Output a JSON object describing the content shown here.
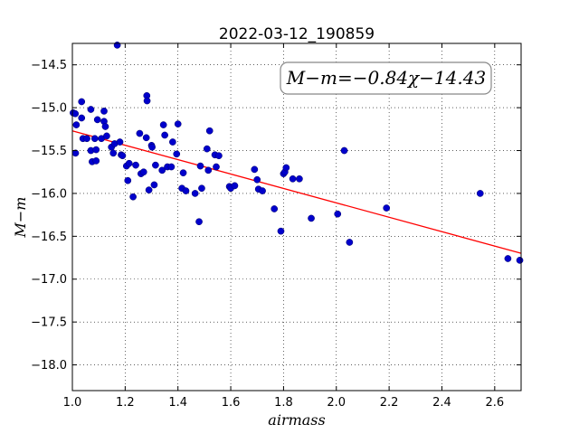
{
  "chart_data": {
    "type": "scatter",
    "title": "2022-03-12_190859",
    "xlabel": "airmass",
    "ylabel": "M−m",
    "xlim": [
      1.0,
      2.7
    ],
    "ylim": [
      -18.3,
      -14.25
    ],
    "grid": true,
    "xticks": [
      1.0,
      1.2,
      1.4,
      1.6,
      1.8,
      2.0,
      2.2,
      2.4,
      2.6
    ],
    "yticks": [
      -18.0,
      -17.5,
      -17.0,
      -16.5,
      -16.0,
      -15.5,
      -15.0,
      -14.5
    ],
    "xtick_labels": [
      "1.0",
      "1.2",
      "1.4",
      "1.6",
      "1.8",
      "2.0",
      "2.2",
      "2.4",
      "2.6"
    ],
    "ytick_labels": [
      "−18.0",
      "−17.5",
      "−17.0",
      "−16.5",
      "−16.0",
      "−15.5",
      "−15.0",
      "−14.5"
    ],
    "annotation": "M−m=−0.84χ−14.43",
    "fit": {
      "slope": -0.84,
      "intercept": -14.43,
      "color": "#ff0000"
    },
    "point_color": "#0000cc",
    "points": [
      {
        "x": 1.003,
        "y": -15.06
      },
      {
        "x": 1.011,
        "y": -15.07
      },
      {
        "x": 1.012,
        "y": -15.53
      },
      {
        "x": 1.015,
        "y": -15.2
      },
      {
        "x": 1.035,
        "y": -14.93
      },
      {
        "x": 1.035,
        "y": -15.12
      },
      {
        "x": 1.04,
        "y": -15.36
      },
      {
        "x": 1.055,
        "y": -15.36
      },
      {
        "x": 1.07,
        "y": -15.02
      },
      {
        "x": 1.07,
        "y": -15.5
      },
      {
        "x": 1.075,
        "y": -15.63
      },
      {
        "x": 1.085,
        "y": -15.36
      },
      {
        "x": 1.09,
        "y": -15.62
      },
      {
        "x": 1.09,
        "y": -15.49
      },
      {
        "x": 1.095,
        "y": -15.14
      },
      {
        "x": 1.11,
        "y": -15.36
      },
      {
        "x": 1.12,
        "y": -15.04
      },
      {
        "x": 1.12,
        "y": -15.16
      },
      {
        "x": 1.125,
        "y": -15.22
      },
      {
        "x": 1.13,
        "y": -15.33
      },
      {
        "x": 1.148,
        "y": -15.46
      },
      {
        "x": 1.155,
        "y": -15.53
      },
      {
        "x": 1.16,
        "y": -15.42
      },
      {
        "x": 1.17,
        "y": -14.27
      },
      {
        "x": 1.18,
        "y": -15.4
      },
      {
        "x": 1.185,
        "y": -15.55
      },
      {
        "x": 1.19,
        "y": -15.56
      },
      {
        "x": 1.205,
        "y": -15.68
      },
      {
        "x": 1.21,
        "y": -15.85
      },
      {
        "x": 1.215,
        "y": -15.65
      },
      {
        "x": 1.23,
        "y": -16.04
      },
      {
        "x": 1.24,
        "y": -15.67
      },
      {
        "x": 1.255,
        "y": -15.3
      },
      {
        "x": 1.26,
        "y": -15.77
      },
      {
        "x": 1.27,
        "y": -15.75
      },
      {
        "x": 1.28,
        "y": -15.35
      },
      {
        "x": 1.282,
        "y": -14.86
      },
      {
        "x": 1.283,
        "y": -14.92
      },
      {
        "x": 1.29,
        "y": -15.96
      },
      {
        "x": 1.3,
        "y": -15.44
      },
      {
        "x": 1.302,
        "y": -15.46
      },
      {
        "x": 1.31,
        "y": -15.9
      },
      {
        "x": 1.315,
        "y": -15.67
      },
      {
        "x": 1.34,
        "y": -15.73
      },
      {
        "x": 1.345,
        "y": -15.2
      },
      {
        "x": 1.35,
        "y": -15.32
      },
      {
        "x": 1.36,
        "y": -15.69
      },
      {
        "x": 1.375,
        "y": -15.69
      },
      {
        "x": 1.38,
        "y": -15.4
      },
      {
        "x": 1.395,
        "y": -15.54
      },
      {
        "x": 1.4,
        "y": -15.19
      },
      {
        "x": 1.415,
        "y": -15.94
      },
      {
        "x": 1.42,
        "y": -15.76
      },
      {
        "x": 1.43,
        "y": -15.97
      },
      {
        "x": 1.465,
        "y": -16.0
      },
      {
        "x": 1.48,
        "y": -16.33
      },
      {
        "x": 1.485,
        "y": -15.68
      },
      {
        "x": 1.49,
        "y": -15.94
      },
      {
        "x": 1.51,
        "y": -15.48
      },
      {
        "x": 1.515,
        "y": -15.73
      },
      {
        "x": 1.52,
        "y": -15.27
      },
      {
        "x": 1.54,
        "y": -15.55
      },
      {
        "x": 1.545,
        "y": -15.69
      },
      {
        "x": 1.555,
        "y": -15.56
      },
      {
        "x": 1.595,
        "y": -15.92
      },
      {
        "x": 1.6,
        "y": -15.94
      },
      {
        "x": 1.615,
        "y": -15.91
      },
      {
        "x": 1.69,
        "y": -15.72
      },
      {
        "x": 1.7,
        "y": -15.84
      },
      {
        "x": 1.705,
        "y": -15.95
      },
      {
        "x": 1.72,
        "y": -15.97
      },
      {
        "x": 1.765,
        "y": -16.18
      },
      {
        "x": 1.79,
        "y": -16.44
      },
      {
        "x": 1.8,
        "y": -15.77
      },
      {
        "x": 1.805,
        "y": -15.75
      },
      {
        "x": 1.81,
        "y": -15.7
      },
      {
        "x": 1.835,
        "y": -15.83
      },
      {
        "x": 1.86,
        "y": -15.83
      },
      {
        "x": 1.905,
        "y": -16.29
      },
      {
        "x": 2.005,
        "y": -16.24
      },
      {
        "x": 2.03,
        "y": -15.5
      },
      {
        "x": 2.05,
        "y": -16.57
      },
      {
        "x": 2.19,
        "y": -16.17
      },
      {
        "x": 2.545,
        "y": -16.0
      },
      {
        "x": 2.65,
        "y": -16.76
      },
      {
        "x": 2.695,
        "y": -16.78
      }
    ]
  }
}
